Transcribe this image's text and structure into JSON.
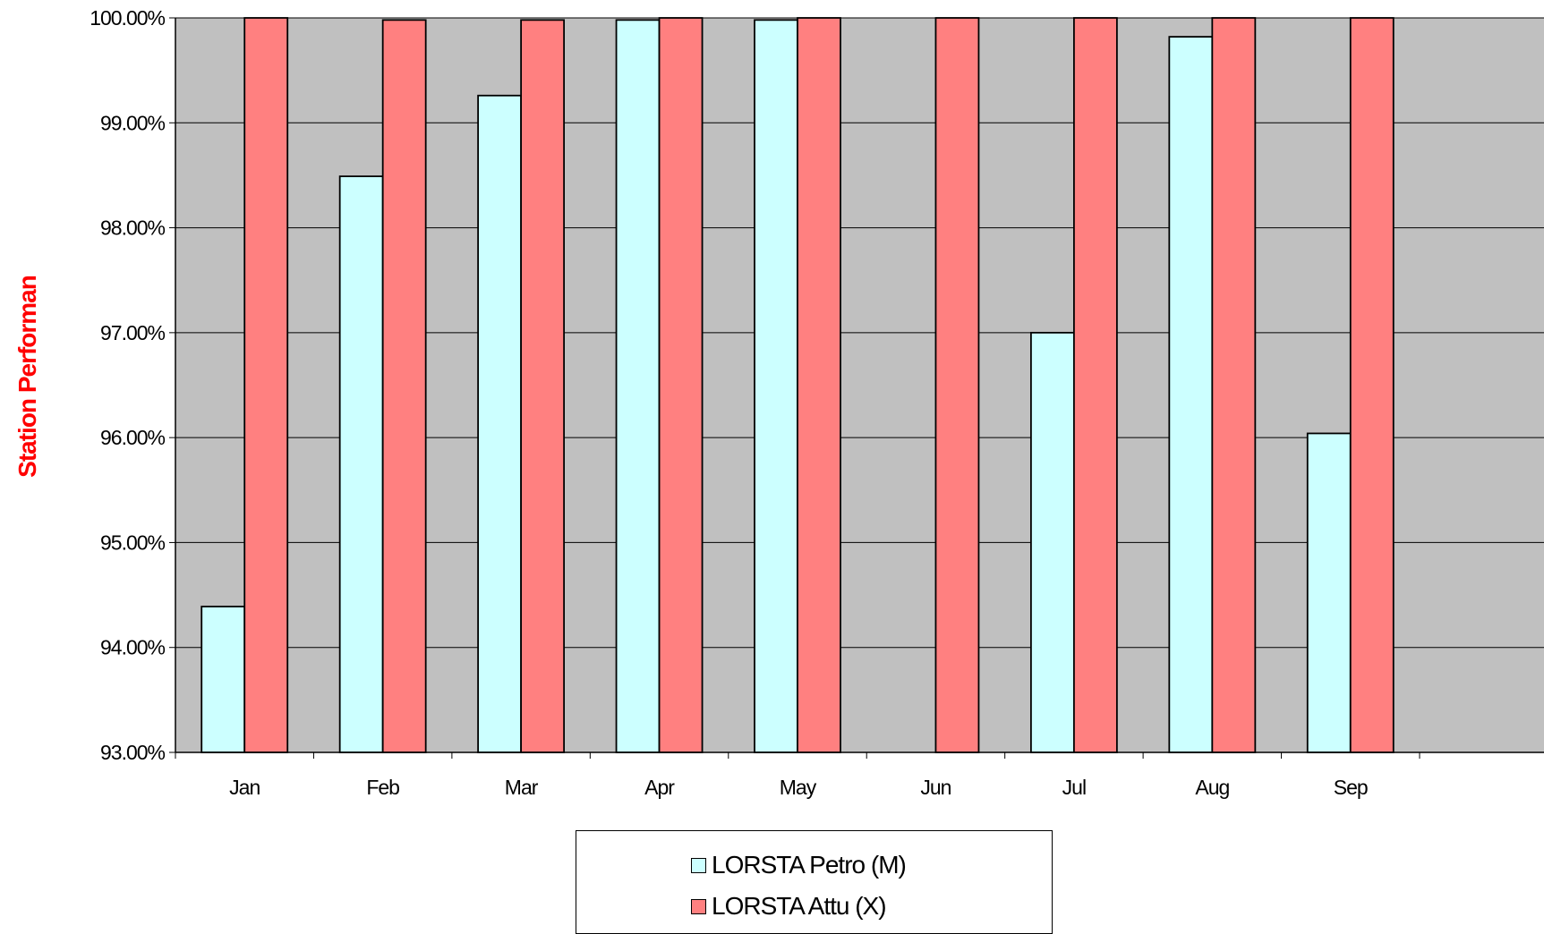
{
  "colors": {
    "plot_background": "#C0C0C0",
    "petro_fill": "#CCFFFF",
    "attu_fill": "#FF8080",
    "axis_title_color": "#FF0000"
  },
  "chart_data": {
    "type": "bar",
    "title": "",
    "xlabel": "",
    "ylabel": "Station Performan",
    "categories": [
      "Jan",
      "Feb",
      "Mar",
      "Apr",
      "May",
      "Jun",
      "Jul",
      "Aug",
      "Sep"
    ],
    "series": [
      {
        "name": "LORSTA Petro (M)",
        "values": [
          94.39,
          98.49,
          99.26,
          99.98,
          99.98,
          null,
          97.0,
          99.82,
          96.04
        ]
      },
      {
        "name": "LORSTA Attu (X)",
        "values": [
          100.0,
          99.98,
          99.98,
          100.0,
          100.0,
          100.0,
          100.0,
          100.0,
          100.0
        ]
      }
    ],
    "yticks": [
      "93.00%",
      "94.00%",
      "95.00%",
      "96.00%",
      "97.00%",
      "98.00%",
      "99.00%",
      "100.00%"
    ],
    "ylim": [
      93,
      100
    ],
    "grid": true,
    "legend_position": "bottom-center"
  }
}
